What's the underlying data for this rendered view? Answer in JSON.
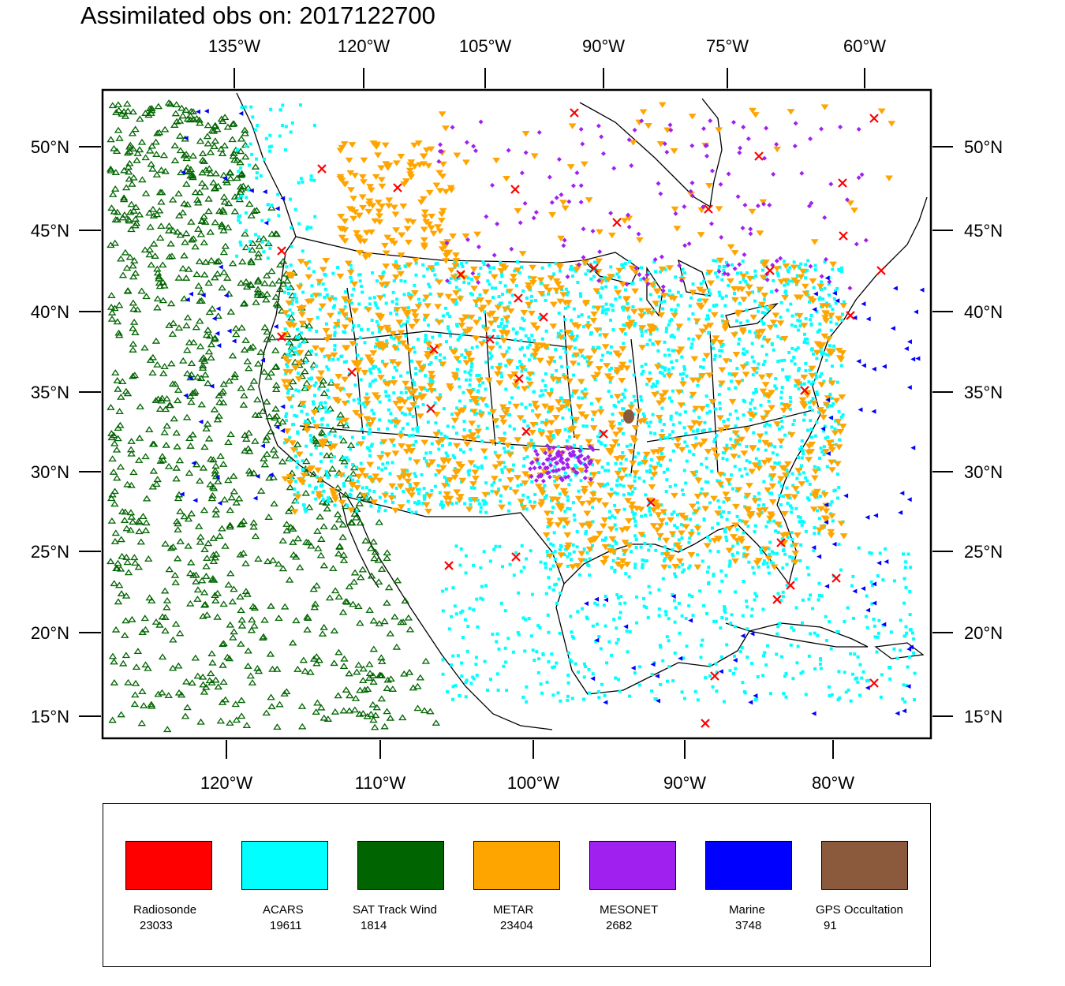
{
  "title": "Assimilated obs on: 2017122700",
  "axes": {
    "top_lon_labels": [
      "135°W",
      "120°W",
      "105°W",
      "90°W",
      "75°W",
      "60°W"
    ],
    "bottom_lon_labels": [
      "120°W",
      "110°W",
      "100°W",
      "90°W",
      "80°W"
    ],
    "lat_labels": [
      "50°N",
      "45°N",
      "40°N",
      "35°N",
      "30°N",
      "25°N",
      "20°N",
      "15°N"
    ]
  },
  "colors": {
    "radiosonde": "#ff0000",
    "acars": "#00ffff",
    "sat_track_wind": "#006400",
    "metar": "#ffa500",
    "mesonet": "#a020f0",
    "marine": "#0000ff",
    "gps_occultation": "#8b5a3c"
  },
  "legend": [
    {
      "name": "Radiosonde",
      "count": "23033",
      "color": "#ff0000"
    },
    {
      "name": "ACARS",
      "count": "19611",
      "color": "#00ffff"
    },
    {
      "name": "SAT Track Wind",
      "count": "1814",
      "color": "#006400"
    },
    {
      "name": "METAR",
      "count": "23404",
      "color": "#ffa500"
    },
    {
      "name": "MESONET",
      "count": "2682",
      "color": "#a020f0"
    },
    {
      "name": "Marine",
      "count": "3748",
      "color": "#0000ff"
    },
    {
      "name": "GPS Occultation",
      "count": "91",
      "color": "#8b5a3c"
    }
  ]
}
